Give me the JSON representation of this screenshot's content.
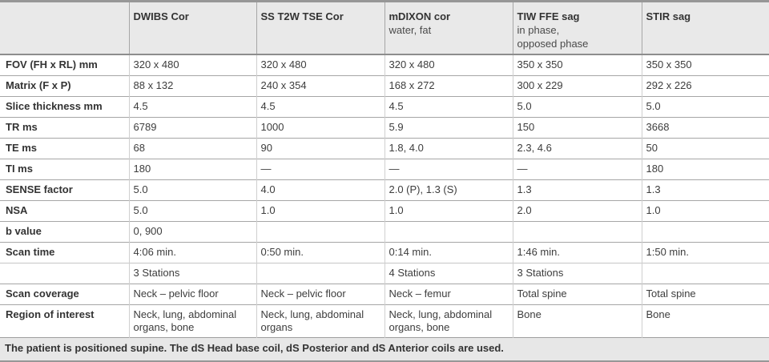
{
  "colors": {
    "header_bg": "#e9e9e9",
    "footer_bg": "#e7e7e7",
    "border_strong": "#979797",
    "border_mid": "#a6a6a6",
    "border_light": "#cfcfcf",
    "text": "#3d3d3d",
    "text_bold": "#333333"
  },
  "table": {
    "columns": [
      {
        "name": "",
        "subtitle": ""
      },
      {
        "name": "DWIBS Cor",
        "subtitle": ""
      },
      {
        "name": "SS T2W TSE Cor",
        "subtitle": ""
      },
      {
        "name": "mDIXON cor",
        "subtitle": "water, fat"
      },
      {
        "name": "TIW FFE sag",
        "subtitle": "in phase,\nopposed phase"
      },
      {
        "name": "STIR sag",
        "subtitle": ""
      }
    ],
    "rows": [
      {
        "label": "FOV (FH x RL) mm",
        "values": [
          "320 x 480",
          "320 x 480",
          "320 x 480",
          "350 x 350",
          "350 x 350"
        ]
      },
      {
        "label": "Matrix (F x P)",
        "values": [
          "88 x 132",
          "240 x 354",
          "168 x 272",
          "300 x 229",
          "292 x 226"
        ]
      },
      {
        "label": "Slice thickness mm",
        "values": [
          "4.5",
          "4.5",
          "4.5",
          "5.0",
          "5.0"
        ]
      },
      {
        "label": "TR ms",
        "values": [
          "6789",
          "1000",
          "5.9",
          "150",
          "3668"
        ]
      },
      {
        "label": "TE ms",
        "values": [
          "68",
          "90",
          "1.8, 4.0",
          "2.3, 4.6",
          "50"
        ]
      },
      {
        "label": "TI ms",
        "values": [
          "180",
          "—",
          "—",
          "—",
          "180"
        ]
      },
      {
        "label": "SENSE factor",
        "values": [
          "5.0",
          "4.0",
          "2.0 (P), 1.3 (S)",
          "1.3",
          "1.3"
        ]
      },
      {
        "label": "NSA",
        "values": [
          "5.0",
          "1.0",
          "1.0",
          "2.0",
          "1.0"
        ]
      },
      {
        "label": "b value",
        "values": [
          "0, 900",
          "",
          "",
          "",
          ""
        ]
      },
      {
        "label": "Scan time",
        "values": [
          "4:06 min.",
          "0:50 min.",
          "0:14 min.",
          "1:46 min.",
          "1:50 min."
        ]
      },
      {
        "label": "",
        "values": [
          "3 Stations",
          "",
          "4 Stations",
          "3 Stations",
          ""
        ],
        "light": true
      },
      {
        "label": "Scan coverage",
        "values": [
          "Neck – pelvic floor",
          "Neck – pelvic floor",
          "Neck – femur",
          "Total spine",
          "Total spine"
        ]
      },
      {
        "label": "Region of interest",
        "values": [
          "Neck, lung, abdominal organs, bone",
          "Neck, lung, abdominal organs",
          "Neck, lung, abdominal organs, bone",
          "Bone",
          "Bone"
        ],
        "tall": true
      }
    ],
    "footer": "The patient is positioned supine. The dS Head base coil, dS Posterior and dS Anterior coils are used."
  }
}
